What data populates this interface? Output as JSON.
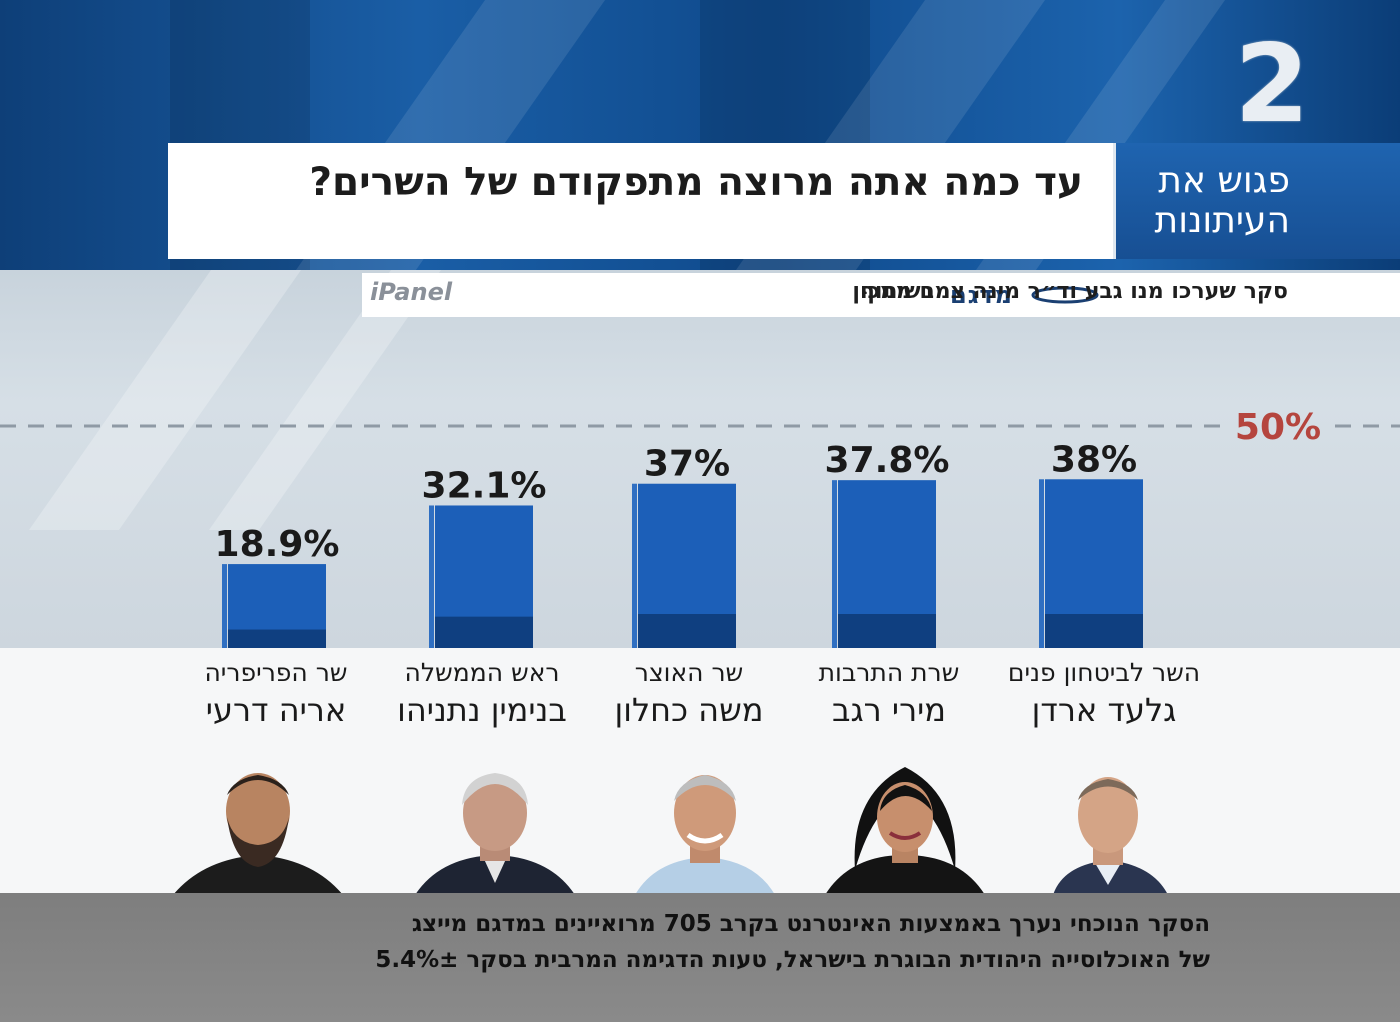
{
  "channel": {
    "logo_text": "2"
  },
  "header": {
    "title": "עד כמה אתה מרוצה מתפקודם של השרים?",
    "show_name_line1": "פגוש את",
    "show_name_line2": "העיתונות"
  },
  "subheader": {
    "text": "סקר שערכו מנו גבע וד״ר מינה צמח ממכון",
    "partner_word": "בשיתוף",
    "datag_logo": "מדגם",
    "ipanel_logo": "iPanel"
  },
  "chart_data": {
    "type": "bar",
    "categories": [
      "השר לביטחון פנים גלעד ארדן",
      "שרת התרבות מירי רגב",
      "שר האוצר משה כחלון",
      "ראש הממשלה בנימין נתניהו",
      "שר הפריפריה אריה דרעי"
    ],
    "values": [
      38,
      37.8,
      37,
      32.1,
      18.9
    ],
    "value_labels": [
      "38%",
      "37.8%",
      "37%",
      "32.1%",
      "18.9%"
    ],
    "reference_line": {
      "value": 50,
      "label": "50%"
    },
    "ylim": [
      0,
      50
    ],
    "xlabel": "",
    "ylabel": "",
    "grid": false,
    "colors": {
      "bar": "#1c5fb8",
      "bar_dark": "#0f3f80",
      "reference": "#b5453e"
    }
  },
  "ministers": [
    {
      "role": "השר לביטחון פנים",
      "name": "גלעד ארדן"
    },
    {
      "role": "שרת התרבות",
      "name": "מירי רגב"
    },
    {
      "role": "שר האוצר",
      "name": "משה כחלון"
    },
    {
      "role": "ראש הממשלה",
      "name": "בנימין נתניהו"
    },
    {
      "role": "שר הפריפריה",
      "name": "אריה דרעי"
    }
  ],
  "footer": {
    "line1": "הסקר הנוכחי נערך באמצעות האינטרנט בקרב 705 מרואיינים במדגם מייצג",
    "line2": "של האוכלוסייה היהודית הבוגרת בישראל, טעות הדגימה המרבית בסקר 5.4%±"
  }
}
